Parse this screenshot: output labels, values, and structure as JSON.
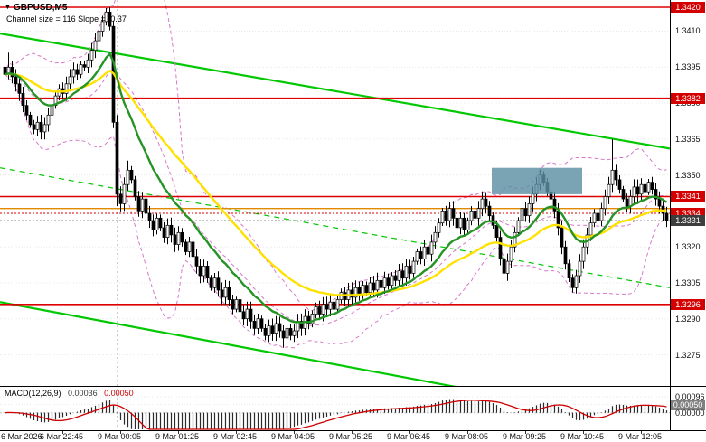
{
  "app": {
    "symbol_label": "GBPUSD,M5",
    "dropdown_icon": "▼",
    "channel_label": "Channel size = 116 Slope = -0.37"
  },
  "colors": {
    "background": "#ffffff",
    "grid": "#e8e8e8",
    "red_line": "#dd0000",
    "orange_line": "#e08a00",
    "bid_line": "#8a8a8a",
    "candle_up": "#ffffff",
    "candle_down": "#000000",
    "candle_border": "#000000",
    "channel": "#00c800",
    "bollinger": "#d678c8",
    "ma_fast": "#259425",
    "ma_slow": "#ffe100",
    "zone": "#5d8fa3",
    "macd_hist": "#2b2b2b",
    "macd_signal": "#cf0000",
    "day_separator": "#9a9a9a",
    "axis_line": "#000000"
  },
  "price_axis": {
    "labels": [
      {
        "text": "1.3410",
        "price": 1.341
      },
      {
        "text": "1.3395",
        "price": 1.3395
      },
      {
        "text": "1.3380",
        "price": 1.338
      },
      {
        "text": "1.3365",
        "price": 1.3365
      },
      {
        "text": "1.3350",
        "price": 1.335
      },
      {
        "text": "1.3320",
        "price": 1.332
      },
      {
        "text": "1.3305",
        "price": 1.3305
      },
      {
        "text": "1.3290",
        "price": 1.329
      },
      {
        "text": "1.3275",
        "price": 1.3275
      }
    ],
    "badges": [
      {
        "text": "1.3420",
        "value": 1.342,
        "style": "red"
      },
      {
        "text": "1.3382",
        "value": 1.3382,
        "style": "red"
      },
      {
        "text": "1.3341",
        "value": 1.3341,
        "style": "red"
      },
      {
        "text": "1.3334",
        "value": 1.3334,
        "style": "red"
      },
      {
        "text": "1.3331",
        "value": 1.3331,
        "style": "dark"
      },
      {
        "text": "1.3296",
        "value": 1.3296,
        "style": "red"
      }
    ]
  },
  "time_axis": {
    "labels": [
      {
        "text": "6 Mar 2026",
        "index": 0
      },
      {
        "text": "6 Mar 22:45",
        "index": 16
      },
      {
        "text": "9 Mar 00:05",
        "index": 32
      },
      {
        "text": "9 Mar 01:25",
        "index": 48
      },
      {
        "text": "9 Mar 02:45",
        "index": 64
      },
      {
        "text": "9 Mar 04:05",
        "index": 80
      },
      {
        "text": "9 Mar 05:25",
        "index": 96
      },
      {
        "text": "9 Mar 06:45",
        "index": 112
      },
      {
        "text": "9 Mar 08:05",
        "index": 128
      },
      {
        "text": "9 Mar 09:25",
        "index": 144
      },
      {
        "text": "9 Mar 10:45",
        "index": 160
      },
      {
        "text": "9 Mar 12:05",
        "index": 176
      }
    ]
  },
  "levels": {
    "resistance_support": [
      1.342,
      1.3382,
      1.3341,
      1.3296
    ],
    "orange_line": 1.3336,
    "ask_line": 1.3334,
    "bid_line": 1.3331
  },
  "channel": {
    "lines": [
      {
        "name": "upper",
        "price_start": 1.3409,
        "price_end": 1.3361,
        "style": "solid"
      },
      {
        "name": "middle",
        "price_start": 1.3353,
        "price_end": 1.3303,
        "style": "dashed"
      },
      {
        "name": "lower",
        "price_start": 1.3297,
        "price_end": 1.3245,
        "style": "solid"
      }
    ]
  },
  "zone": {
    "i_start": 135,
    "i_end": 160,
    "price_top": 1.3353,
    "price_bottom": 1.3342,
    "color": "#5d8fa3",
    "opacity": 0.82
  },
  "separators": {
    "day_index": 31
  },
  "chart_data": {
    "type": "candlestick",
    "title": "GBPUSD,M5",
    "symbol": "GBPUSD",
    "timeframe": "M5",
    "ylim": [
      1.3262,
      1.3423
    ],
    "x_labels": [
      "6 Mar 2026",
      "6 Mar 22:45",
      "9 Mar 00:05",
      "9 Mar 01:25",
      "9 Mar 02:45",
      "9 Mar 04:05",
      "9 Mar 05:25",
      "9 Mar 06:45",
      "9 Mar 08:05",
      "9 Mar 09:25",
      "9 Mar 10:45",
      "9 Mar 12:05"
    ],
    "closes": [
      1.3392,
      1.3395,
      1.3391,
      1.3388,
      1.3384,
      1.3379,
      1.3375,
      1.3371,
      1.3369,
      1.3372,
      1.3368,
      1.3371,
      1.3375,
      1.3379,
      1.3383,
      1.3386,
      1.3384,
      1.3388,
      1.3391,
      1.3394,
      1.3392,
      1.3396,
      1.3395,
      1.3398,
      1.3402,
      1.3406,
      1.341,
      1.3414,
      1.3418,
      1.3412,
      1.3372,
      1.3342,
      1.3338,
      1.3346,
      1.3352,
      1.3348,
      1.3341,
      1.3335,
      1.334,
      1.3334,
      1.3331,
      1.3327,
      1.3332,
      1.3328,
      1.3324,
      1.3329,
      1.3325,
      1.3321,
      1.3326,
      1.3322,
      1.3318,
      1.3322,
      1.3316,
      1.3312,
      1.3308,
      1.3312,
      1.3307,
      1.3303,
      1.3307,
      1.3302,
      1.3299,
      1.3303,
      1.3298,
      1.3294,
      1.3298,
      1.3293,
      1.329,
      1.3294,
      1.3289,
      1.3286,
      1.329,
      1.3286,
      1.3283,
      1.3287,
      1.3284,
      1.3288,
      1.3285,
      1.3282,
      1.3286,
      1.3283,
      1.3285,
      1.3289,
      1.3286,
      1.3291,
      1.3288,
      1.3292,
      1.3295,
      1.3292,
      1.3296,
      1.3294,
      1.3297,
      1.3294,
      1.3298,
      1.3301,
      1.3298,
      1.3302,
      1.3299,
      1.3303,
      1.33,
      1.3304,
      1.3301,
      1.3305,
      1.3302,
      1.3306,
      1.3303,
      1.3307,
      1.3304,
      1.3308,
      1.3306,
      1.331,
      1.3307,
      1.3312,
      1.3309,
      1.3314,
      1.3318,
      1.3315,
      1.332,
      1.3317,
      1.3322,
      1.3326,
      1.333,
      1.3335,
      1.3331,
      1.3336,
      1.3332,
      1.3328,
      1.3332,
      1.3327,
      1.3331,
      1.3335,
      1.3332,
      1.3336,
      1.334,
      1.3337,
      1.3333,
      1.3329,
      1.3324,
      1.3315,
      1.3309,
      1.3314,
      1.332,
      1.3326,
      1.3331,
      1.3336,
      1.3333,
      1.3338,
      1.3342,
      1.3346,
      1.335,
      1.3347,
      1.3343,
      1.334,
      1.3335,
      1.3328,
      1.332,
      1.3313,
      1.3307,
      1.3303,
      1.3308,
      1.3314,
      1.332,
      1.3325,
      1.333,
      1.3334,
      1.3331,
      1.3336,
      1.3341,
      1.3346,
      1.3352,
      1.3348,
      1.3344,
      1.334,
      1.3337,
      1.3341,
      1.3345,
      1.3342,
      1.3346,
      1.3343,
      1.3347,
      1.3344,
      1.334,
      1.3337,
      1.3334,
      1.3331
    ],
    "spikes": [
      {
        "i": 1,
        "high": 1.3401
      },
      {
        "i": 28,
        "high": 1.3419
      },
      {
        "i": 29,
        "high": 1.342
      },
      {
        "i": 31,
        "low": 1.3337
      },
      {
        "i": 34,
        "high": 1.3356
      },
      {
        "i": 77,
        "low": 1.3278
      },
      {
        "i": 138,
        "low": 1.3305
      },
      {
        "i": 157,
        "low": 1.3301
      },
      {
        "i": 168,
        "high": 1.3365
      }
    ],
    "overlays": {
      "ema_fast": {
        "period": 16,
        "color": "#259425"
      },
      "ema_slow": {
        "period": 40,
        "color": "#ffe100"
      },
      "bollinger": {
        "period": 20,
        "mult": 2,
        "color": "#d678c8"
      }
    },
    "macd": {
      "label": "MACD(12,26,9)",
      "value_main": "0.00036",
      "value_signal": "0.00050",
      "params": [
        12,
        26,
        9
      ],
      "ylim": [
        -0.001,
        0.0014
      ],
      "axis_labels": [
        {
          "text": "0.00096",
          "value": 0.00096
        },
        {
          "text": "0.00050",
          "value": 0.0005,
          "badge": true
        },
        {
          "text": "0.00000",
          "value": 0.0
        }
      ]
    }
  }
}
